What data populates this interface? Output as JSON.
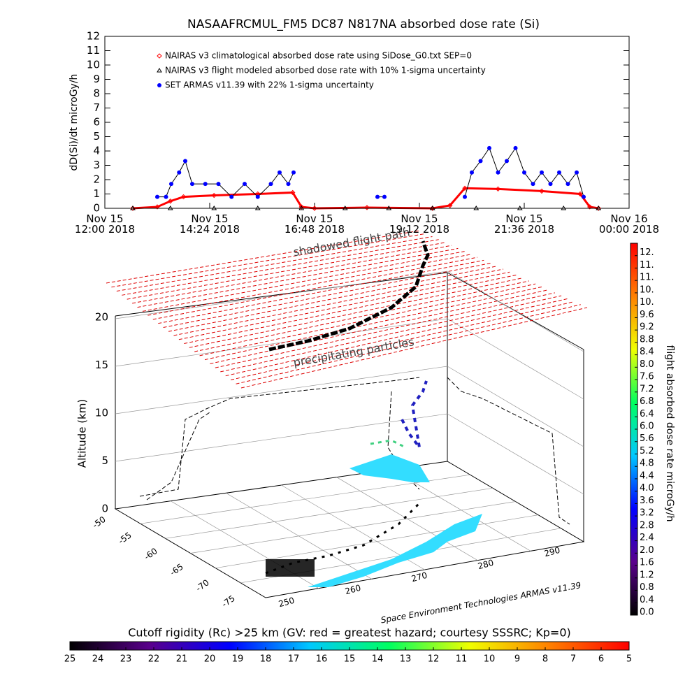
{
  "chart_data": [
    {
      "type": "line",
      "title": "NASAAFRCMUL_FM5 DC87 N817NA absorbed dose rate (Si)",
      "ylabel": "dD(Si)/dt microGy/h",
      "xlim": [
        12,
        24
      ],
      "xticks": [
        {
          "value": 12,
          "label": "Nov 15\n12:00 2018"
        },
        {
          "value": 14.4,
          "label": "Nov 15\n14:24 2018"
        },
        {
          "value": 16.8,
          "label": "Nov 15\n16:48 2018"
        },
        {
          "value": 19.2,
          "label": "Nov 15\n19:12 2018"
        },
        {
          "value": 21.6,
          "label": "Nov 15\n21:36 2018"
        },
        {
          "value": 24,
          "label": "Nov 16\n00:00 2018"
        }
      ],
      "ylim": [
        0,
        12
      ],
      "yticks": [
        0,
        1,
        2,
        3,
        4,
        5,
        6,
        7,
        8,
        9,
        10,
        11,
        12
      ],
      "series": [
        {
          "name": "NAIRAS v3 climatological absorbed dose rate using SiDose_G0.txt SEP=0",
          "color": "#ff0000",
          "marker": "diamond",
          "x": [
            12.64,
            13.2,
            13.5,
            13.8,
            14.5,
            15.5,
            16.3,
            16.5,
            16.8,
            18,
            19.5,
            19.9,
            20.24,
            21,
            22,
            22.88,
            23.1,
            23.3
          ],
          "values": [
            0,
            0.1,
            0.5,
            0.8,
            0.9,
            1.0,
            1.1,
            0.1,
            0,
            0.05,
            0,
            0.2,
            1.4,
            1.35,
            1.2,
            1.0,
            0.1,
            0
          ]
        },
        {
          "name": "NAIRAS v3 flight modeled absorbed dose rate with 10% 1-sigma uncertainty",
          "color": "#000000",
          "marker": "triangle",
          "x": [
            12.64,
            13.5,
            14.5,
            15.5,
            16.5,
            17.5,
            18.5,
            19.5,
            20.5,
            21.5,
            22.5,
            23.3
          ],
          "values": [
            0,
            0,
            0,
            0,
            0,
            0,
            0,
            0,
            0,
            0,
            0,
            0
          ]
        },
        {
          "name": "SET ARMAS v11.39 with 22% 1-sigma uncertainty",
          "color": "#0000ff",
          "marker": "circle",
          "x": [
            13.2,
            13.4,
            13.52,
            13.7,
            13.84,
            14.0,
            14.3,
            14.6,
            14.9,
            15.2,
            15.5,
            15.8,
            16.0,
            16.2,
            16.32,
            16.4,
            18.24,
            18.4,
            18.5,
            20.24,
            20.4,
            20.6,
            20.8,
            21.0,
            21.2,
            21.4,
            21.6,
            21.8,
            22.0,
            22.2,
            22.4,
            22.6,
            22.8,
            22.96
          ],
          "values": [
            0.8,
            0.8,
            1.7,
            2.5,
            3.3,
            1.7,
            1.7,
            1.7,
            0.8,
            1.7,
            0.8,
            1.7,
            2.5,
            1.7,
            2.5,
            null,
            0.8,
            0.8,
            null,
            0.8,
            2.5,
            3.3,
            4.2,
            2.5,
            3.3,
            4.2,
            2.5,
            1.7,
            2.5,
            1.7,
            2.5,
            1.7,
            2.5,
            0.8
          ]
        }
      ]
    },
    {
      "type": "colorbar",
      "orientation": "vertical",
      "label": "flight absorbed dose rate microGy/h",
      "ylim": [
        0,
        12
      ],
      "yticks": [
        {
          "value": 0,
          "label": "0.0"
        },
        0.4,
        0.8,
        1.2,
        1.6,
        {
          "value": 2,
          "label": "2.0"
        },
        2.4,
        2.8,
        3.2,
        3.6,
        {
          "value": 4,
          "label": "4.0"
        },
        4.4,
        4.8,
        5.2,
        5.6,
        {
          "value": 6,
          "label": "6.0"
        },
        6.4,
        6.8,
        7.2,
        7.6,
        {
          "value": 8,
          "label": "8.0"
        },
        8.4,
        8.8,
        9.2,
        9.6,
        {
          "value": 10,
          "label": "10."
        },
        {
          "value": 10.4,
          "label": "10."
        },
        {
          "value": 10.8,
          "label": "11."
        },
        {
          "value": 11.2,
          "label": "11."
        },
        {
          "value": 11.6,
          "label": "12."
        }
      ],
      "colors": [
        "#000000",
        "#5a008c",
        "#0000ff",
        "#00c8ff",
        "#00ff60",
        "#f0ff00",
        "#ff8000",
        "#ff0000"
      ]
    },
    {
      "type": "colorbar",
      "orientation": "horizontal",
      "title": "Cutoff rigidity (Rc) >25 km (GV: red = greatest hazard; courtesy SSSRC; Kp=0)",
      "xlim": [
        25,
        5
      ],
      "xticks": [
        25,
        24,
        23,
        22,
        21,
        20,
        19,
        18,
        17,
        16,
        15,
        14,
        13,
        12,
        11,
        10,
        9,
        8,
        7,
        6,
        5
      ],
      "colors": [
        "#000000",
        "#5a008c",
        "#0000ff",
        "#00c8ff",
        "#00ff60",
        "#f0ff00",
        "#ff8000",
        "#ff0000"
      ]
    }
  ],
  "plot3d": {
    "zlabel": "Altitude (km)",
    "zticks": [
      "0",
      "5",
      "10",
      "15",
      "20"
    ],
    "lat_ticks": [
      "-50",
      "-55",
      "-60",
      "-65",
      "-70",
      "-75"
    ],
    "lon_ticks": [
      "250",
      "260",
      "270",
      "280",
      "290"
    ],
    "annotations": [
      "shadowed flight path",
      "precipitating particles",
      "Space Environment Technologies ARMAS v11.39"
    ]
  }
}
